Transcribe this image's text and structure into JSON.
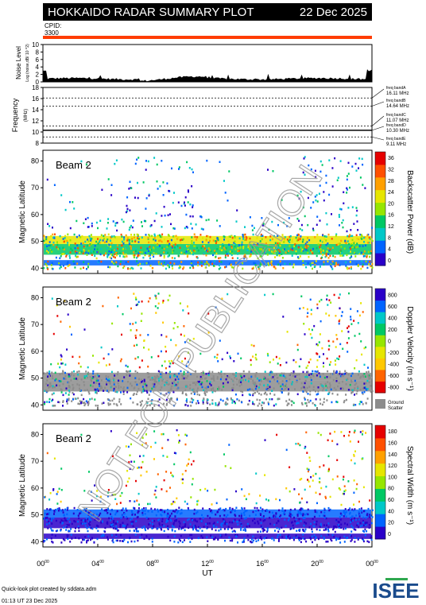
{
  "header": {
    "title": "HOKKAIDO RADAR SUMMARY PLOT",
    "date": "22 Dec 2025",
    "cpid_label": "CPID:",
    "cpid_value": "3300"
  },
  "noise_panel": {
    "ylabel": "Noise Level",
    "ylabel_sub": "Log (noise,dB/ 10 ^2)",
    "yticks": [
      "0",
      "2",
      "4",
      "6",
      "8",
      "10"
    ]
  },
  "freq_panel": {
    "ylabel": "Frequency",
    "ylabel_sub": "(MHz)",
    "yticks": [
      "8",
      "10",
      "12",
      "14",
      "16",
      "18"
    ],
    "bands": [
      {
        "label": "freq bandA",
        "value": "16.11 MHz"
      },
      {
        "label": "freq bandB",
        "value": "14.64 MHz"
      },
      {
        "label": "freq bandC",
        "value": "11.07 MHz"
      },
      {
        "label": "freq bandD",
        "value": "10.30 MHz"
      },
      {
        "label": "freq bandE",
        "value": "9.11 MHz"
      }
    ]
  },
  "beam_panels": [
    {
      "beam_label": "Beam  2",
      "ylabel": "Magnetic Latitude",
      "yticks": [
        "40",
        "50",
        "60",
        "70",
        "80"
      ],
      "cbar_title": "Backscatter Power (dB)",
      "cbar_ticks": [
        "0",
        "4",
        "8",
        "12",
        "16",
        "20",
        "24",
        "28",
        "32",
        "36"
      ],
      "extra_label_1": "",
      "extra_label_2": ""
    },
    {
      "beam_label": "Beam  2",
      "ylabel": "Magnetic Latitude",
      "yticks": [
        "40",
        "50",
        "60",
        "70",
        "80"
      ],
      "cbar_title": "Doppler Velocity (m s⁻¹)",
      "cbar_ticks": [
        "-800",
        "-600",
        "-400",
        "-200",
        "0",
        "200",
        "400",
        "600",
        "800"
      ],
      "extra_label_1": "Ground",
      "extra_label_2": "Scatter"
    },
    {
      "beam_label": "Beam  2",
      "ylabel": "Magnetic Latitude",
      "yticks": [
        "40",
        "50",
        "60",
        "70",
        "80"
      ],
      "cbar_title": "Spectral Width (m s⁻¹)",
      "cbar_ticks": [
        "0",
        "20",
        "40",
        "60",
        "80",
        "100",
        "120",
        "140",
        "160",
        "180"
      ],
      "extra_label_1": "",
      "extra_label_2": ""
    }
  ],
  "xaxis": {
    "label": "UT",
    "ticks": [
      {
        "h": "00",
        "s": "00"
      },
      {
        "h": "04",
        "s": "00"
      },
      {
        "h": "08",
        "s": "00"
      },
      {
        "h": "12",
        "s": "00"
      },
      {
        "h": "16",
        "s": "00"
      },
      {
        "h": "20",
        "s": "00"
      },
      {
        "h": "00",
        "s": "00"
      }
    ]
  },
  "footer": {
    "line1": "Quick-look plot created by sddata.adm",
    "line2": "01:13 UT 23 Dec 2025",
    "logo_text": "ISEE"
  },
  "watermark": "NOT FOR PUBLICATION",
  "colors": {
    "header_bg": "#000000",
    "redbar": "#ff3c00",
    "ground_scatter": "#8c8c8c",
    "power_scale": [
      "#2a00c8",
      "#0064ff",
      "#00c8c8",
      "#00c864",
      "#96e600",
      "#e6e600",
      "#ffa000",
      "#ff5000",
      "#e60000"
    ],
    "velocity_scale": [
      "#e60000",
      "#ff6400",
      "#ffc800",
      "#e6e600",
      "#96e600",
      "#00c864",
      "#00c8c8",
      "#0064ff",
      "#2a00c8"
    ]
  },
  "chart_data": [
    {
      "type": "area",
      "name_hint": "noise level",
      "x_range_hours": [
        0,
        24
      ],
      "ylim": [
        0,
        10
      ],
      "ylabel": "Noise Level",
      "typical_value": 1
    },
    {
      "type": "line",
      "name_hint": "frequency",
      "x_range_hours": [
        0,
        24
      ],
      "ylim": [
        8,
        18
      ],
      "ylabel": "Frequency",
      "bands_mhz": [
        16.11,
        14.64,
        11.07,
        10.3,
        9.11
      ]
    },
    {
      "type": "heatmap",
      "xlabel": "UT",
      "ylabel": "Magnetic Latitude",
      "x_range_hours": [
        0,
        24
      ],
      "ylim": [
        38,
        84
      ],
      "colorbar_label": "Backscatter Power (dB)",
      "colorbar_range": [
        0,
        36
      ]
    },
    {
      "type": "heatmap",
      "xlabel": "UT",
      "ylabel": "Magnetic Latitude",
      "x_range_hours": [
        0,
        24
      ],
      "ylim": [
        38,
        84
      ],
      "colorbar_label": "Doppler Velocity (m s⁻¹)",
      "colorbar_range": [
        -800,
        800
      ]
    },
    {
      "type": "heatmap",
      "xlabel": "UT",
      "ylabel": "Magnetic Latitude",
      "x_range_hours": [
        0,
        24
      ],
      "ylim": [
        38,
        84
      ],
      "colorbar_label": "Spectral Width (m s⁻¹)",
      "colorbar_range": [
        0,
        180
      ]
    }
  ]
}
